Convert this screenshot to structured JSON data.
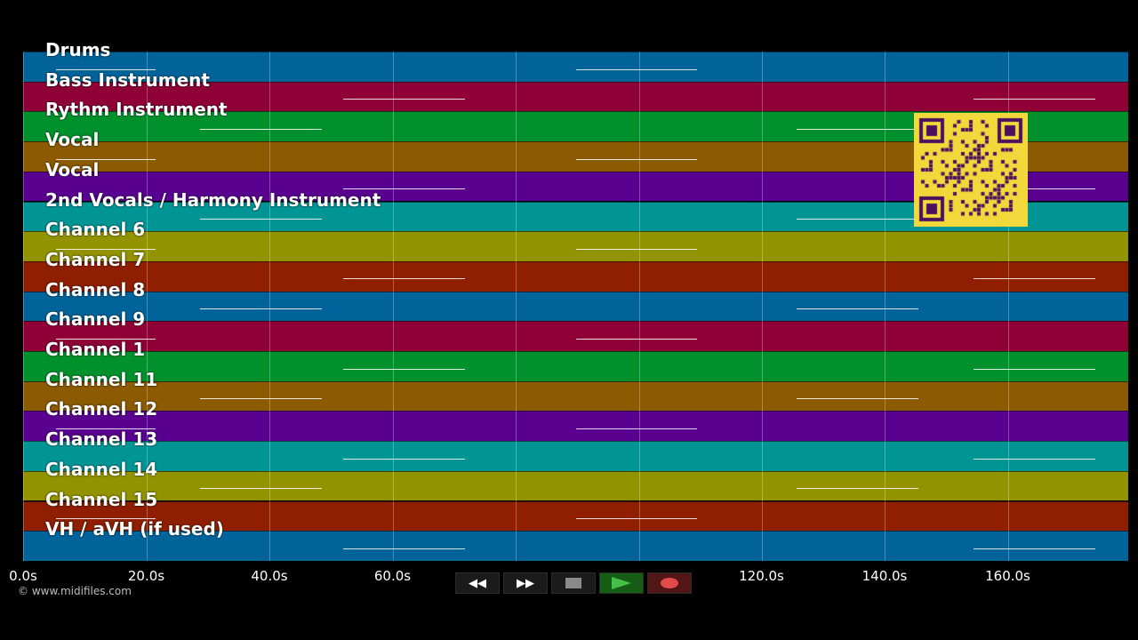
{
  "lanes": [
    {
      "label": "Drums",
      "color": "#00639a"
    },
    {
      "label": "Bass Instrument",
      "color": "#8e0036"
    },
    {
      "label": "Rythm Instrument",
      "color": "#00912c"
    },
    {
      "label": "Vocal",
      "color": "#8c5a00"
    },
    {
      "label": "Vocal",
      "color": "#5a0090"
    },
    {
      "label": "2nd Vocals / Harmony Instrument",
      "color": "#009595"
    },
    {
      "label": "Channel 6",
      "color": "#939300"
    },
    {
      "label": "Channel 7",
      "color": "#8f1f00"
    },
    {
      "label": "Channel 8",
      "color": "#00639a"
    },
    {
      "label": "Channel 9",
      "color": "#8e0036"
    },
    {
      "label": "Channel 1",
      "color": "#00912c"
    },
    {
      "label": "Channel 11",
      "color": "#8c5a00"
    },
    {
      "label": "Channel 12",
      "color": "#5a0090"
    },
    {
      "label": "Channel 13",
      "color": "#009595"
    },
    {
      "label": "Channel 14",
      "color": "#939300"
    },
    {
      "label": "Channel 15",
      "color": "#8f1f00"
    },
    {
      "label": "VH / aVH (if used)",
      "color": "#00639a"
    }
  ],
  "timeline": {
    "ticks": [
      "0.0s",
      "20.0s",
      "40.0s",
      "60.0s",
      "120.0s",
      "140.0s",
      "160.0s"
    ]
  },
  "copyright": "© www.midifiles.com",
  "transport": {
    "rewind": "◀◀",
    "forward": "▶▶",
    "stop_icon": "stop-icon",
    "play_icon": "play-icon",
    "record_icon": "record-icon"
  }
}
